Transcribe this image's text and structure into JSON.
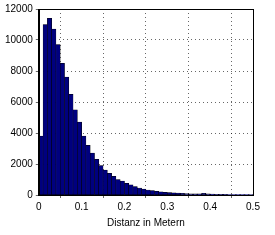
{
  "chart_data": {
    "type": "histogram",
    "x_label": "Distanz in Metern",
    "bins": [
      0,
      0.01,
      0.02,
      0.03,
      0.04,
      0.05,
      0.06,
      0.07,
      0.08,
      0.09,
      0.1,
      0.11,
      0.12,
      0.13,
      0.14,
      0.15,
      0.16,
      0.17,
      0.18,
      0.19,
      0.2,
      0.21,
      0.22,
      0.23,
      0.24,
      0.25,
      0.26,
      0.27,
      0.28,
      0.29,
      0.3,
      0.31,
      0.32,
      0.33,
      0.34,
      0.35,
      0.36,
      0.37,
      0.38,
      0.39,
      0.4,
      0.41,
      0.42,
      0.43,
      0.44,
      0.45,
      0.46,
      0.47,
      0.48,
      0.49,
      0.5
    ],
    "values": [
      3800,
      11000,
      11400,
      10700,
      9700,
      8500,
      7600,
      6500,
      5500,
      4700,
      3800,
      3200,
      2700,
      2300,
      1900,
      1600,
      1400,
      1200,
      1000,
      900,
      750,
      650,
      550,
      450,
      380,
      320,
      280,
      240,
      200,
      180,
      160,
      140,
      120,
      100,
      90,
      80,
      80,
      70,
      100,
      80,
      60,
      50,
      40,
      40,
      30,
      30,
      20,
      20,
      20,
      10
    ],
    "color": "#00007f",
    "xlim": [
      0,
      0.5
    ],
    "xticks": [
      0,
      0.1,
      0.2,
      0.3,
      0.4,
      0.5
    ],
    "ylim": [
      0,
      12000
    ],
    "yticks": [
      0,
      2000,
      4000,
      6000,
      8000,
      10000,
      12000
    ],
    "grid": true
  }
}
